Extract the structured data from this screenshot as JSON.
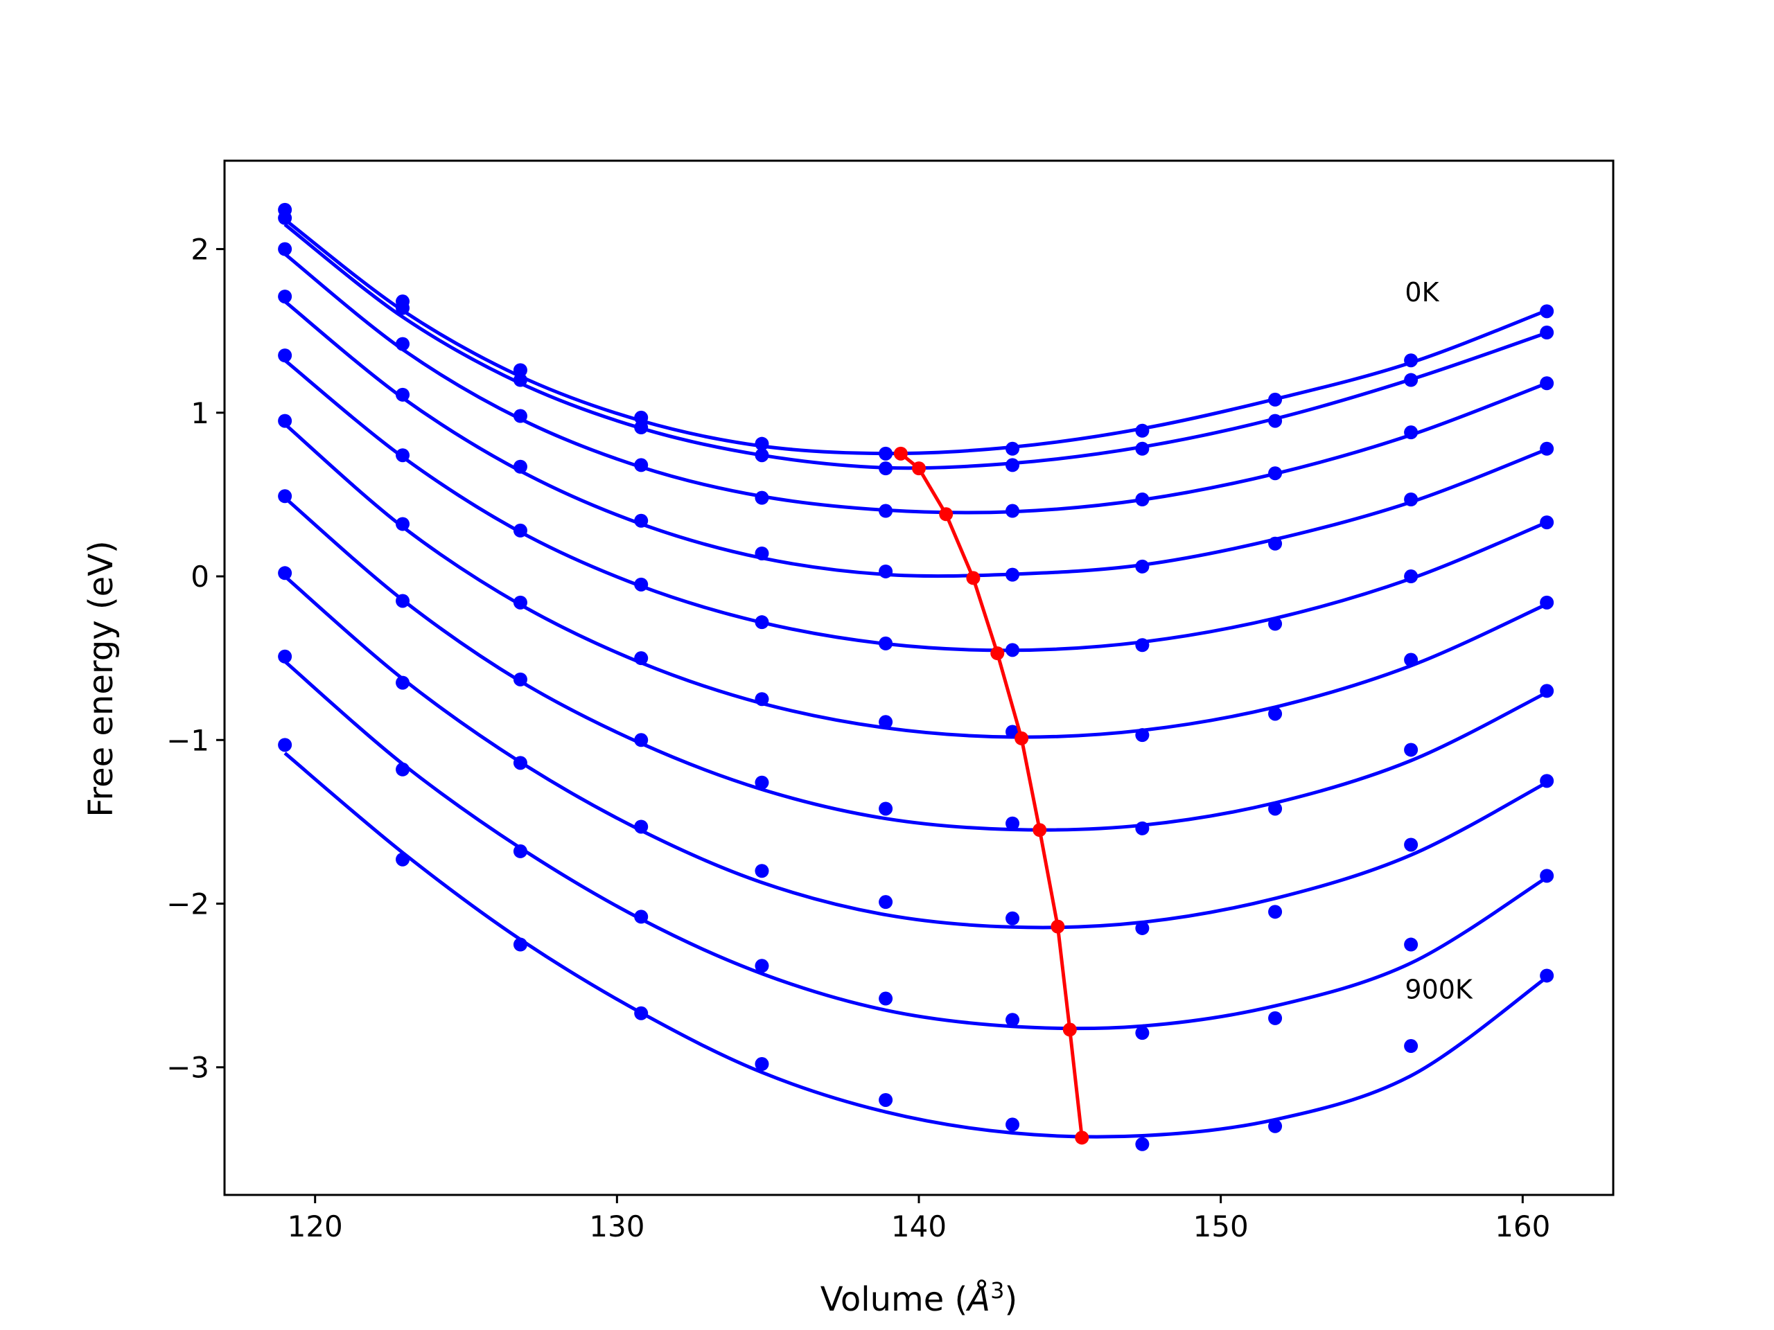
{
  "chart_data": {
    "type": "scatter",
    "xlabel": "Volume (",
    "xlabel_unit_symbol": "Å",
    "xlabel_unit_exponent": "3",
    "xlabel_close": ")",
    "ylabel": "Free energy (eV)",
    "xlim": [
      117,
      163
    ],
    "ylim": [
      -3.78,
      2.54
    ],
    "xticks": [
      120,
      130,
      140,
      150,
      160
    ],
    "yticks": [
      2,
      1,
      0,
      -1,
      -2,
      -3
    ],
    "ytick_labels": [
      "2",
      "1",
      "0",
      "−1",
      "−2",
      "−3"
    ],
    "annotations": [
      {
        "text": "0K",
        "x": 156.1,
        "y": 1.68
      },
      {
        "text": "900K",
        "x": 156.1,
        "y": -2.58
      }
    ],
    "colors": {
      "points": "#0000ff",
      "fit": "#0000ff",
      "minimum": "#ff0000"
    },
    "volumes": [
      119.0,
      122.9,
      126.8,
      130.8,
      134.8,
      138.9,
      143.1,
      147.4,
      151.8,
      156.3,
      160.8
    ],
    "series": [
      {
        "values": [
          2.24,
          1.68,
          1.26,
          0.97,
          0.81,
          0.75,
          0.78,
          0.89,
          1.08,
          1.32,
          1.62
        ],
        "fit": [
          2.18,
          1.625,
          1.222,
          0.951,
          0.796,
          0.751,
          0.79,
          0.903,
          1.083,
          1.306,
          1.625
        ]
      },
      {
        "values": [
          2.19,
          1.64,
          1.2,
          0.91,
          0.74,
          0.66,
          0.68,
          0.78,
          0.95,
          1.2,
          1.49
        ],
        "fit": [
          2.15,
          1.585,
          1.18,
          0.905,
          0.74,
          0.664,
          0.691,
          0.791,
          0.963,
          1.203,
          1.488
        ]
      },
      {
        "values": [
          2.0,
          1.42,
          0.98,
          0.68,
          0.48,
          0.4,
          0.4,
          0.47,
          0.63,
          0.88,
          1.18
        ],
        "fit": [
          1.97,
          1.387,
          0.962,
          0.668,
          0.489,
          0.405,
          0.395,
          0.468,
          0.627,
          0.864,
          1.18
        ]
      },
      {
        "values": [
          1.71,
          1.11,
          0.67,
          0.34,
          0.14,
          0.03,
          0.01,
          0.06,
          0.2,
          0.47,
          0.78
        ],
        "fit": [
          1.68,
          1.091,
          0.644,
          0.32,
          0.112,
          0.011,
          0.013,
          0.07,
          0.226,
          0.454,
          0.776
        ]
      },
      {
        "values": [
          1.35,
          0.74,
          0.28,
          -0.05,
          -0.28,
          -0.41,
          -0.45,
          -0.42,
          -0.29,
          0.0,
          0.33
        ],
        "fit": [
          1.32,
          0.73,
          0.271,
          -0.06,
          -0.282,
          -0.412,
          -0.452,
          -0.401,
          -0.256,
          -0.014,
          0.33
        ]
      },
      {
        "values": [
          0.95,
          0.32,
          -0.16,
          -0.5,
          -0.75,
          -0.89,
          -0.95,
          -0.97,
          -0.84,
          -0.51,
          -0.16
        ],
        "fit": [
          0.93,
          0.303,
          -0.173,
          -0.528,
          -0.776,
          -0.926,
          -0.982,
          -0.941,
          -0.799,
          -0.546,
          -0.17
        ]
      },
      {
        "values": [
          0.49,
          -0.15,
          -0.63,
          -1.0,
          -1.26,
          -1.42,
          -1.51,
          -1.54,
          -1.42,
          -1.06,
          -0.7
        ],
        "fit": [
          0.48,
          -0.144,
          -0.641,
          -1.021,
          -1.302,
          -1.48,
          -1.547,
          -1.521,
          -1.384,
          -1.126,
          -0.71
        ]
      },
      {
        "values": [
          0.02,
          -0.65,
          -1.14,
          -1.53,
          -1.8,
          -1.99,
          -2.09,
          -2.15,
          -2.05,
          -1.64,
          -1.25
        ],
        "fit": [
          0.0,
          -0.626,
          -1.135,
          -1.553,
          -1.871,
          -2.068,
          -2.143,
          -2.114,
          -1.968,
          -1.703,
          -1.26
        ]
      },
      {
        "values": [
          -0.49,
          -1.18,
          -1.68,
          -2.08,
          -2.38,
          -2.58,
          -2.71,
          -2.79,
          -2.7,
          -2.25,
          -1.83
        ],
        "fit": [
          -0.52,
          -1.146,
          -1.66,
          -2.095,
          -2.428,
          -2.651,
          -2.75,
          -2.748,
          -2.625,
          -2.363,
          -1.84
        ]
      },
      {
        "values": [
          -1.03,
          -1.73,
          -2.25,
          -2.67,
          -2.98,
          -3.2,
          -3.35,
          -3.47,
          -3.36,
          -2.87,
          -2.44
        ],
        "fit": [
          -1.08,
          -1.688,
          -2.219,
          -2.667,
          -3.031,
          -3.273,
          -3.401,
          -3.418,
          -3.32,
          -3.052,
          -2.45
        ]
      }
    ],
    "minimum_curve": {
      "x": [
        139.4,
        140.0,
        140.9,
        141.8,
        142.6,
        143.4,
        144.0,
        144.6,
        145.0,
        145.4
      ],
      "y": [
        0.75,
        0.66,
        0.38,
        -0.01,
        -0.47,
        -0.99,
        -1.55,
        -2.14,
        -2.77,
        -3.43
      ]
    }
  }
}
